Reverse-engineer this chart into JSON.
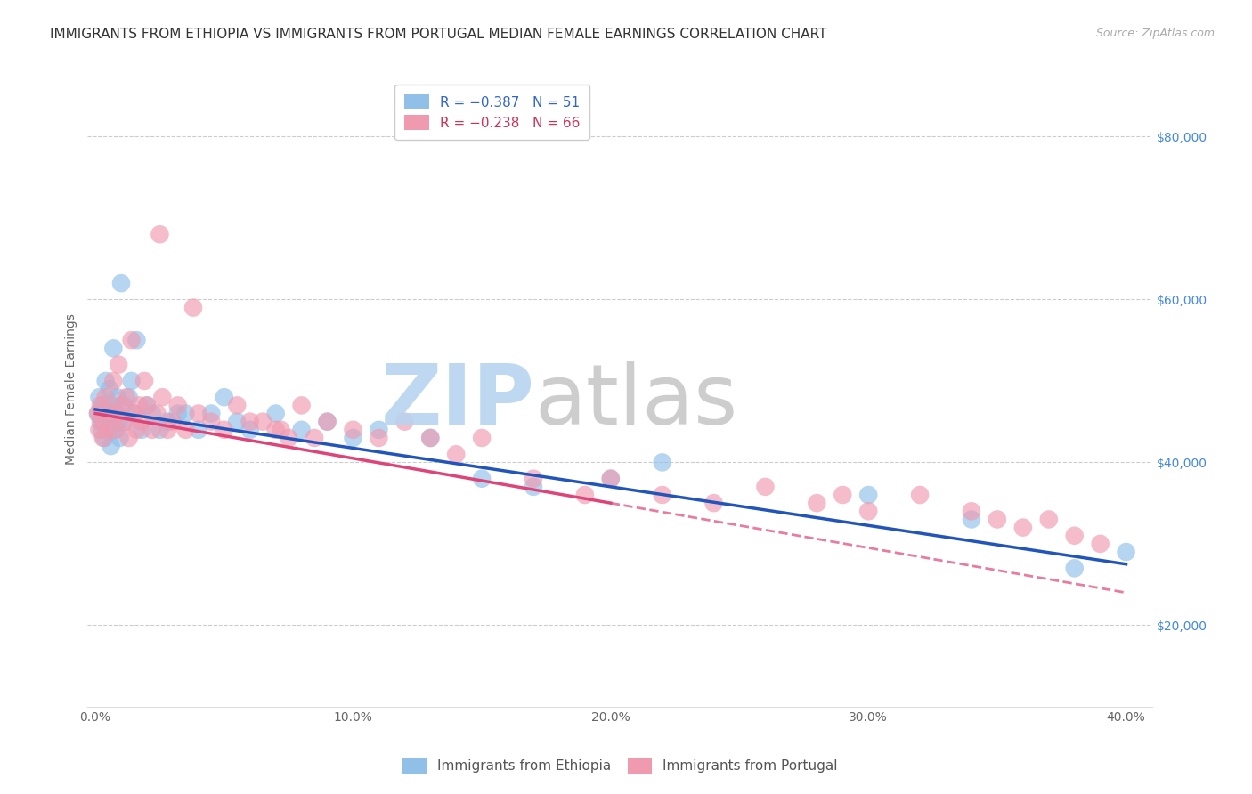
{
  "title": "IMMIGRANTS FROM ETHIOPIA VS IMMIGRANTS FROM PORTUGAL MEDIAN FEMALE EARNINGS CORRELATION CHART",
  "source": "Source: ZipAtlas.com",
  "ylabel": "Median Female Earnings",
  "ylim": [
    10000,
    88000
  ],
  "xlim": [
    -0.3,
    41.0
  ],
  "ylabel_ticks": [
    20000,
    40000,
    60000,
    80000
  ],
  "ylabel_labels": [
    "$20,000",
    "$40,000",
    "$60,000",
    "$80,000"
  ],
  "xticks": [
    0,
    10,
    20,
    30,
    40
  ],
  "xtick_labels": [
    "0.0%",
    "10.0%",
    "20.0%",
    "30.0%",
    "40.0%"
  ],
  "ethiopia_color": "#90bfe8",
  "portugal_color": "#f09ab0",
  "eth_line_color": "#2255bb",
  "por_line_color": "#dd4477",
  "right_axis_color": "#4488dd",
  "title_color": "#333333",
  "source_color": "#aaaaaa",
  "watermark_zip_color": "#b8d4f0",
  "watermark_atlas_color": "#c8c8c8",
  "ethiopia_scatter_x": [
    0.1,
    0.15,
    0.2,
    0.25,
    0.3,
    0.35,
    0.4,
    0.45,
    0.5,
    0.55,
    0.6,
    0.65,
    0.7,
    0.75,
    0.8,
    0.85,
    0.9,
    0.95,
    1.0,
    1.1,
    1.2,
    1.3,
    1.4,
    1.5,
    1.6,
    1.8,
    2.0,
    2.2,
    2.5,
    2.8,
    3.2,
    3.5,
    4.0,
    4.5,
    5.0,
    5.5,
    6.0,
    7.0,
    8.0,
    9.0,
    10.0,
    11.0,
    13.0,
    15.0,
    17.0,
    20.0,
    22.0,
    30.0,
    34.0,
    38.0,
    40.0
  ],
  "ethiopia_scatter_y": [
    46000,
    48000,
    45000,
    44000,
    47000,
    43000,
    50000,
    44000,
    46000,
    49000,
    42000,
    47000,
    54000,
    44000,
    46000,
    48000,
    45000,
    43000,
    62000,
    47000,
    45000,
    48000,
    50000,
    46000,
    55000,
    44000,
    47000,
    46000,
    44000,
    45000,
    46000,
    46000,
    44000,
    46000,
    48000,
    45000,
    44000,
    46000,
    44000,
    45000,
    43000,
    44000,
    43000,
    38000,
    37000,
    38000,
    40000,
    36000,
    33000,
    27000,
    29000
  ],
  "portugal_scatter_x": [
    0.1,
    0.15,
    0.2,
    0.25,
    0.3,
    0.4,
    0.5,
    0.6,
    0.7,
    0.8,
    0.85,
    0.9,
    1.0,
    1.1,
    1.2,
    1.3,
    1.4,
    1.5,
    1.6,
    1.7,
    1.8,
    1.9,
    2.0,
    2.2,
    2.4,
    2.6,
    2.8,
    3.0,
    3.2,
    3.5,
    4.0,
    4.5,
    5.0,
    5.5,
    6.0,
    7.0,
    7.5,
    8.0,
    9.0,
    10.0,
    11.0,
    12.0,
    13.0,
    14.0,
    15.0,
    17.0,
    19.0,
    20.0,
    22.0,
    24.0,
    26.0,
    28.0,
    29.0,
    30.0,
    32.0,
    34.0,
    35.0,
    36.0,
    37.0,
    38.0,
    39.0,
    2.5,
    3.8,
    6.5,
    7.2,
    8.5
  ],
  "portugal_scatter_y": [
    46000,
    44000,
    47000,
    45000,
    43000,
    48000,
    44000,
    46000,
    50000,
    44000,
    46000,
    52000,
    47000,
    45000,
    48000,
    43000,
    55000,
    46000,
    44000,
    47000,
    45000,
    50000,
    47000,
    44000,
    46000,
    48000,
    44000,
    45000,
    47000,
    44000,
    46000,
    45000,
    44000,
    47000,
    45000,
    44000,
    43000,
    47000,
    45000,
    44000,
    43000,
    45000,
    43000,
    41000,
    43000,
    38000,
    36000,
    38000,
    36000,
    35000,
    37000,
    35000,
    36000,
    34000,
    36000,
    34000,
    33000,
    32000,
    33000,
    31000,
    30000,
    68000,
    59000,
    45000,
    44000,
    43000
  ],
  "eth_line_x0": 0.0,
  "eth_line_y0": 46500,
  "eth_line_x1": 40.0,
  "eth_line_y1": 27500,
  "por_line_x0": 0.0,
  "por_line_y0": 46000,
  "por_line_x1": 20.0,
  "por_line_y1": 35000,
  "title_fontsize": 11,
  "source_fontsize": 9,
  "tick_fontsize": 10,
  "ylabel_fontsize": 10
}
